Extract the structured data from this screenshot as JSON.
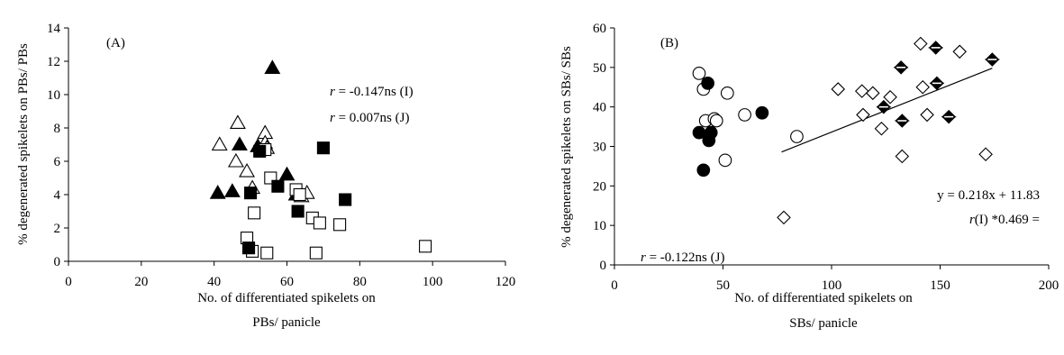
{
  "chart_data": [
    {
      "panel_label": "(A)",
      "type": "scatter",
      "xlabel_lines": [
        "No. of differentiated spikelets on",
        "PBs/ panicle"
      ],
      "ylabel": "% degenerated spikelets on PBs/ PBs",
      "xlim": [
        0,
        120
      ],
      "ylim": [
        0,
        14
      ],
      "xticks": [
        0,
        20,
        40,
        60,
        80,
        100,
        120
      ],
      "yticks": [
        0,
        2,
        4,
        6,
        8,
        10,
        12,
        14
      ],
      "grid": false,
      "annotations": [
        {
          "r": "r",
          "text": " = -0.147ns (I)"
        },
        {
          "r": "r",
          "text": " = 0.007ns (J)"
        }
      ],
      "series": [
        {
          "marker": "triangle-open",
          "points": [
            [
              41.5,
              7.0
            ],
            [
              46.5,
              8.3
            ],
            [
              46,
              6.0
            ],
            [
              49,
              5.4
            ],
            [
              50.5,
              4.4
            ],
            [
              54,
              7.7
            ],
            [
              54,
              7.1
            ],
            [
              54.5,
              6.8
            ],
            [
              64,
              3.9
            ],
            [
              65.5,
              4.1
            ]
          ]
        },
        {
          "marker": "triangle-filled",
          "points": [
            [
              41,
              4.1
            ],
            [
              45,
              4.2
            ],
            [
              47,
              7.0
            ],
            [
              52,
              6.9
            ],
            [
              56,
              11.6
            ],
            [
              60,
              5.2
            ],
            [
              62.5,
              4.0
            ]
          ]
        },
        {
          "marker": "square-open",
          "points": [
            [
              49,
              1.4
            ],
            [
              50.5,
              0.6
            ],
            [
              51,
              2.9
            ],
            [
              54,
              6.7
            ],
            [
              54.5,
              0.5
            ],
            [
              55.5,
              5.0
            ],
            [
              62.5,
              4.3
            ],
            [
              63.5,
              4.0
            ],
            [
              67,
              2.6
            ],
            [
              68,
              0.5
            ],
            [
              69,
              2.3
            ],
            [
              74.5,
              2.2
            ],
            [
              98,
              0.9
            ]
          ]
        },
        {
          "marker": "square-filled",
          "points": [
            [
              49.5,
              0.8
            ],
            [
              50,
              4.1
            ],
            [
              52.5,
              6.6
            ],
            [
              57.5,
              4.5
            ],
            [
              63,
              3.0
            ],
            [
              70,
              6.8
            ],
            [
              76,
              3.7
            ]
          ]
        }
      ]
    },
    {
      "panel_label": "(B)",
      "type": "scatter",
      "xlabel_lines": [
        "No. of differentiated spikelets on",
        "SBs/ panicle"
      ],
      "ylabel": "% degenerated spikelets on SBs/ SBs",
      "xlim": [
        0,
        200
      ],
      "ylim": [
        0,
        60
      ],
      "xticks": [
        0,
        50,
        100,
        150,
        200
      ],
      "yticks": [
        0,
        10,
        20,
        30,
        40,
        50,
        60
      ],
      "grid": false,
      "annotations": [
        {
          "text": "y = 0.218x + 11.83"
        },
        {
          "r": "r",
          "text": "(I) *0.469 ="
        },
        {
          "r": "r",
          "text": " = -0.122ns (J)"
        }
      ],
      "trendline": {
        "x": [
          77,
          174
        ],
        "y": [
          28.6,
          49.8
        ]
      },
      "series": [
        {
          "marker": "circle-open",
          "points": [
            [
              39,
              48.5
            ],
            [
              41,
              44.5
            ],
            [
              42,
              36.5
            ],
            [
              46,
              37
            ],
            [
              47,
              36.5
            ],
            [
              51,
              26.5
            ],
            [
              52,
              43.5
            ],
            [
              60,
              38
            ],
            [
              84,
              32.5
            ]
          ]
        },
        {
          "marker": "circle-filled",
          "points": [
            [
              39,
              33.5
            ],
            [
              41,
              24
            ],
            [
              43,
              46
            ],
            [
              43.5,
              31.5
            ],
            [
              44.5,
              33.5
            ],
            [
              68,
              38.5
            ]
          ]
        },
        {
          "marker": "diamond-open",
          "points": [
            [
              78,
              12
            ],
            [
              103,
              44.5
            ],
            [
              114,
              44
            ],
            [
              114.5,
              38
            ],
            [
              119,
              43.5
            ],
            [
              123,
              34.5
            ],
            [
              127,
              42.5
            ],
            [
              132.5,
              27.5
            ],
            [
              141,
              56
            ],
            [
              142,
              45
            ],
            [
              144,
              38
            ],
            [
              159,
              54
            ],
            [
              171,
              28
            ]
          ]
        },
        {
          "marker": "diamond-half",
          "points": [
            [
              124,
              40
            ],
            [
              132,
              50
            ],
            [
              132.5,
              36.5
            ],
            [
              148,
              55
            ],
            [
              148.5,
              46
            ],
            [
              154,
              37.5
            ],
            [
              174,
              52
            ]
          ]
        }
      ]
    }
  ]
}
